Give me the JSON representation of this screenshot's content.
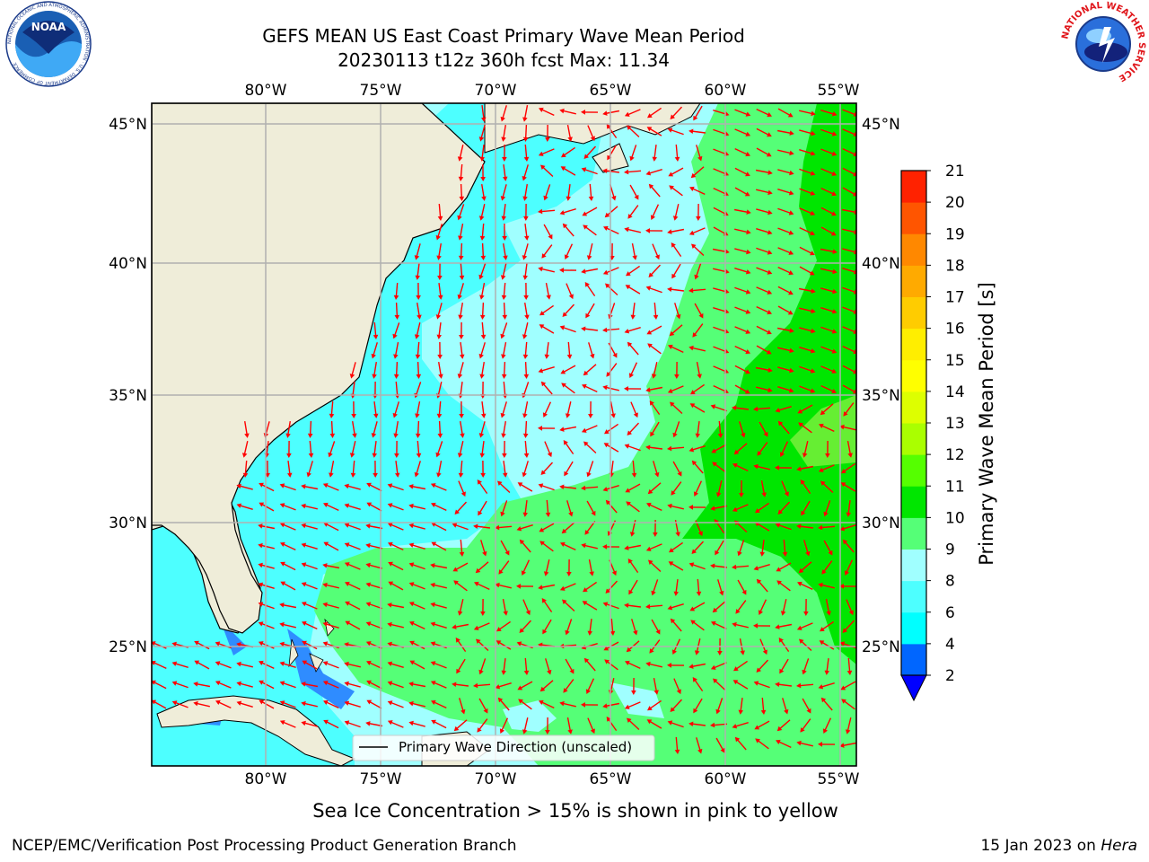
{
  "header": {
    "title_line1": "GEFS MEAN US East Coast Primary Wave Mean Period",
    "title_line2": "20230113 t12z 360h fcst   Max: 11.34"
  },
  "logos": {
    "left": {
      "name": "noaa-logo",
      "text": "NOAA",
      "ring_text": "NATIONAL OCEANIC AND ATMOSPHERIC ADMINISTRATION · U.S. DEPARTMENT OF COMMERCE"
    },
    "right": {
      "name": "nws-logo",
      "ring_text": "NATIONAL WEATHER SERVICE"
    }
  },
  "map": {
    "lon_labels": [
      "80°W",
      "75°W",
      "70°W",
      "65°W",
      "60°W",
      "55°W"
    ],
    "lat_labels": [
      "45°N",
      "40°N",
      "35°N",
      "30°N",
      "25°N"
    ],
    "legend_label": "Primary Wave Direction (unscaled)",
    "colors": {
      "land": "#efedd9",
      "arrow": "#ff0000",
      "grid": "#b0b0b0"
    }
  },
  "colorbar": {
    "label": "Primary Wave Mean Period [s]",
    "ticks": [
      "2",
      "4",
      "6",
      "8",
      "9",
      "10",
      "11",
      "12",
      "13",
      "14",
      "15",
      "16",
      "17",
      "18",
      "19",
      "20",
      "21"
    ],
    "colors": [
      "#0066ff",
      "#00ffff",
      "#4dffff",
      "#a0ffff",
      "#55ff77",
      "#00e600",
      "#55ff00",
      "#aaff00",
      "#ddff00",
      "#ffff00",
      "#ffee00",
      "#ffcc00",
      "#ffaa00",
      "#ff8800",
      "#ff5500",
      "#ff2200",
      "#ff0000"
    ],
    "under_color": "#0000ff"
  },
  "caption": "Sea Ice Concentration > 15% is shown in pink to yellow",
  "footer": {
    "left": "NCEP/EMC/Verification Post Processing Product Generation Branch",
    "right_date": "15 Jan 2023 on ",
    "right_host": "Hera"
  }
}
